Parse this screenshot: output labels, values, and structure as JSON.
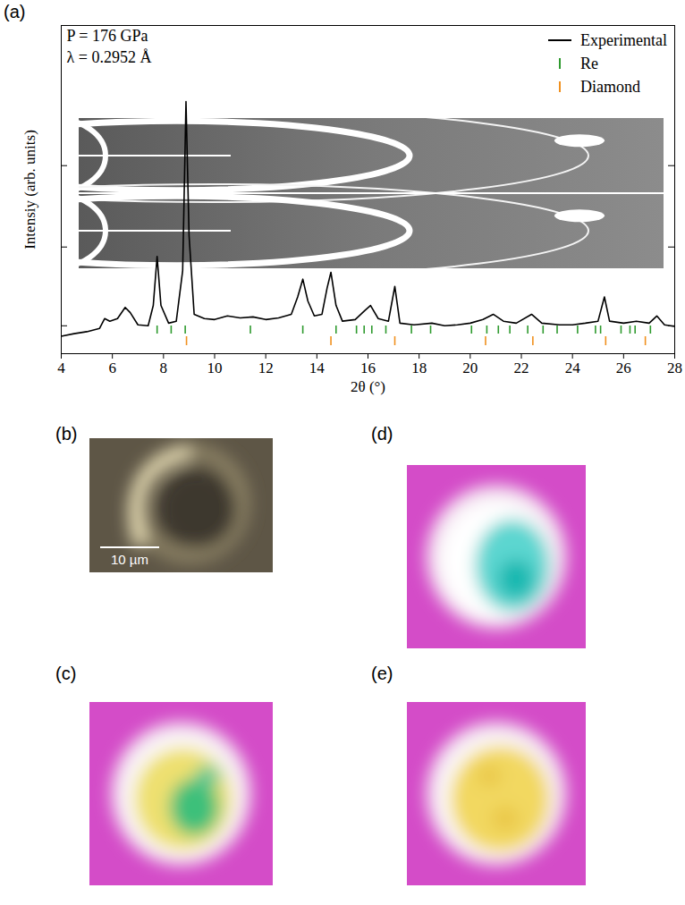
{
  "chart_data": {
    "type": "line",
    "panel_label": "(a)",
    "annotations": [
      "P = 176 GPa",
      "λ = 0.2952 Å"
    ],
    "xlabel": "2θ (°)",
    "ylabel": "Intensiy (arb. units)",
    "xlim": [
      4,
      28
    ],
    "xticks": [
      4,
      6,
      8,
      10,
      12,
      14,
      16,
      18,
      20,
      22,
      24,
      26,
      28
    ],
    "ylim": [
      0,
      100
    ],
    "yticks": [
      8.5,
      32.5,
      57.3
    ],
    "tick_labels": "x",
    "legend": "top-right",
    "series": [
      {
        "name": "Experimental",
        "color": "#000000",
        "type": "line",
        "x": [
          4.0,
          4.5,
          5.0,
          5.5,
          5.7,
          5.9,
          6.2,
          6.5,
          6.7,
          7.0,
          7.4,
          7.6,
          7.75,
          7.9,
          8.2,
          8.5,
          8.75,
          8.88,
          9.0,
          9.2,
          9.6,
          10.0,
          10.5,
          11.0,
          11.5,
          12.0,
          12.5,
          13.0,
          13.25,
          13.45,
          13.65,
          13.9,
          14.2,
          14.4,
          14.55,
          14.75,
          15.0,
          15.5,
          15.9,
          16.1,
          16.4,
          16.8,
          17.05,
          17.25,
          17.8,
          18.5,
          19.0,
          19.5,
          20.0,
          20.5,
          20.9,
          21.3,
          21.8,
          22.4,
          22.8,
          23.5,
          24.0,
          24.5,
          25.0,
          25.25,
          25.45,
          26.0,
          26.5,
          27.0,
          27.3,
          27.6,
          28.0
        ],
        "values": [
          5.3,
          6.1,
          6.7,
          7.7,
          10.7,
          9.9,
          10.7,
          14.1,
          12.5,
          8.8,
          8.5,
          14.7,
          29.6,
          14.7,
          9.3,
          9.9,
          25.3,
          76.8,
          36.0,
          12.0,
          10.7,
          10.4,
          11.5,
          10.9,
          11.2,
          10.4,
          10.9,
          12.0,
          17.3,
          22.7,
          16.0,
          11.5,
          12.0,
          20.0,
          24.8,
          14.7,
          9.9,
          10.4,
          13.3,
          14.7,
          10.7,
          9.9,
          20.5,
          9.3,
          8.8,
          9.3,
          8.5,
          8.8,
          9.3,
          10.4,
          12.0,
          9.9,
          9.3,
          12.0,
          9.3,
          8.8,
          8.8,
          9.3,
          9.9,
          17.3,
          9.9,
          9.3,
          9.9,
          9.3,
          11.5,
          8.8,
          8.3
        ]
      },
      {
        "name": "Re",
        "color": "#2e9a2e",
        "type": "tick",
        "x": [
          7.75,
          8.3,
          8.85,
          11.4,
          13.45,
          14.75,
          15.55,
          15.85,
          16.15,
          16.7,
          17.7,
          18.45,
          20.05,
          20.65,
          21.1,
          21.55,
          22.25,
          22.85,
          23.4,
          24.2,
          24.9,
          25.1,
          25.9,
          26.25,
          26.45,
          27.05
        ]
      },
      {
        "name": "Diamond",
        "color": "#f0901e",
        "type": "tick",
        "x": [
          8.9,
          14.55,
          17.05,
          20.6,
          22.45,
          25.3,
          26.85
        ]
      }
    ]
  },
  "images": [
    {
      "label": "(b)",
      "scale_bar": "10 µm"
    },
    {
      "label": "(c)"
    },
    {
      "label": "(d)"
    },
    {
      "label": "(e)"
    }
  ]
}
